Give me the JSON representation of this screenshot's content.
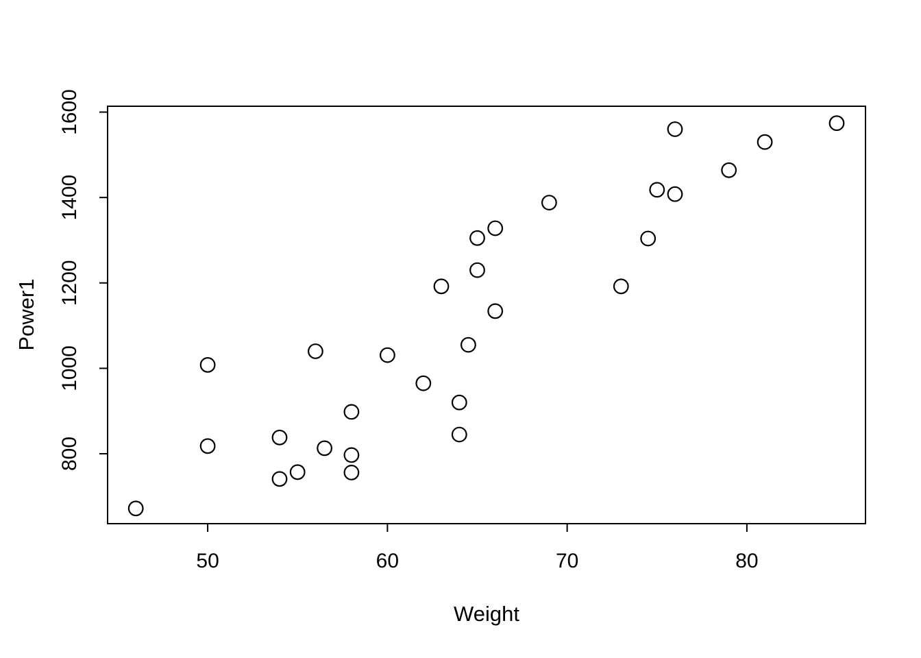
{
  "figure": {
    "background_color": "#ffffff",
    "foreground_color": "#000000"
  },
  "chart_data": {
    "type": "scatter",
    "title": "",
    "xlabel": "Weight",
    "ylabel": "Power1",
    "x_ticks": [
      50,
      60,
      70,
      80
    ],
    "y_ticks": [
      800,
      1000,
      1200,
      1400,
      1600
    ],
    "xlim": [
      44.43,
      86.6
    ],
    "ylim": [
      636.3,
      1613.7
    ],
    "grid": false,
    "legend_position": "none",
    "marker": "open-circle",
    "marker_color": "#000000",
    "points": [
      {
        "x": 46,
        "y": 672
      },
      {
        "x": 50,
        "y": 1008
      },
      {
        "x": 50,
        "y": 818
      },
      {
        "x": 54,
        "y": 838
      },
      {
        "x": 54,
        "y": 741
      },
      {
        "x": 55,
        "y": 757
      },
      {
        "x": 56,
        "y": 1040
      },
      {
        "x": 56.5,
        "y": 813
      },
      {
        "x": 58,
        "y": 898
      },
      {
        "x": 58,
        "y": 797
      },
      {
        "x": 58,
        "y": 756
      },
      {
        "x": 60,
        "y": 1031
      },
      {
        "x": 62,
        "y": 965
      },
      {
        "x": 63,
        "y": 1192
      },
      {
        "x": 64,
        "y": 920
      },
      {
        "x": 64,
        "y": 845
      },
      {
        "x": 64.5,
        "y": 1055
      },
      {
        "x": 65,
        "y": 1305
      },
      {
        "x": 65,
        "y": 1230
      },
      {
        "x": 66,
        "y": 1328
      },
      {
        "x": 66,
        "y": 1134
      },
      {
        "x": 69,
        "y": 1388
      },
      {
        "x": 73,
        "y": 1192
      },
      {
        "x": 74.5,
        "y": 1304
      },
      {
        "x": 75,
        "y": 1418
      },
      {
        "x": 76,
        "y": 1408
      },
      {
        "x": 76,
        "y": 1560
      },
      {
        "x": 79,
        "y": 1464
      },
      {
        "x": 81,
        "y": 1530
      },
      {
        "x": 85,
        "y": 1574
      }
    ]
  }
}
